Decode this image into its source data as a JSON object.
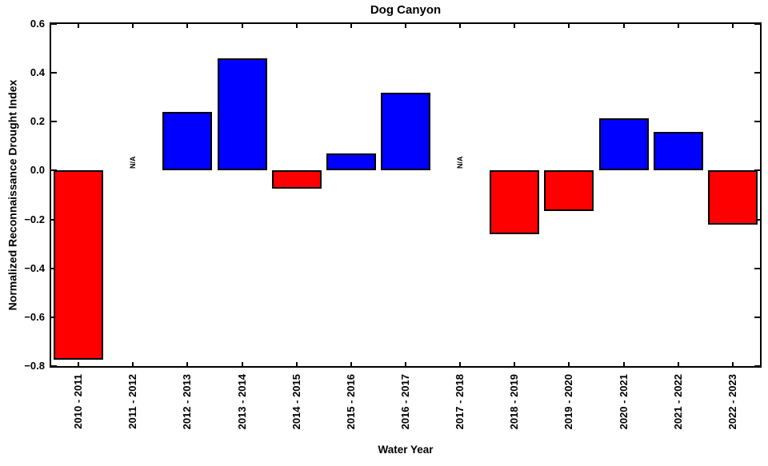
{
  "chart_data": {
    "type": "bar",
    "title": "Dog Canyon",
    "xlabel": "Water Year",
    "ylabel": "Normalized Reconnaissance Drought Index",
    "categories": [
      "2010 - 2011",
      "2011 - 2012",
      "2012 - 2013",
      "2013 - 2014",
      "2014 - 2015",
      "2015 - 2016",
      "2016 - 2017",
      "2017 - 2018",
      "2018 - 2019",
      "2019 - 2020",
      "2020 - 2021",
      "2021 - 2022",
      "2022 - 2023"
    ],
    "values": [
      -0.775,
      null,
      0.24,
      0.46,
      -0.075,
      0.07,
      0.32,
      null,
      -0.26,
      -0.165,
      0.215,
      0.16,
      -0.22
    ],
    "missing_value_label": "N/A",
    "ylim": [
      -0.8,
      0.6
    ],
    "yticks": [
      0.6,
      0.4,
      0.2,
      0.0,
      -0.2,
      -0.4,
      -0.6,
      -0.8
    ],
    "positive_color": "#0000ff",
    "negative_color": "#ff0000",
    "bar_edge_color": "#000000",
    "grid": "off",
    "legend": "none"
  }
}
